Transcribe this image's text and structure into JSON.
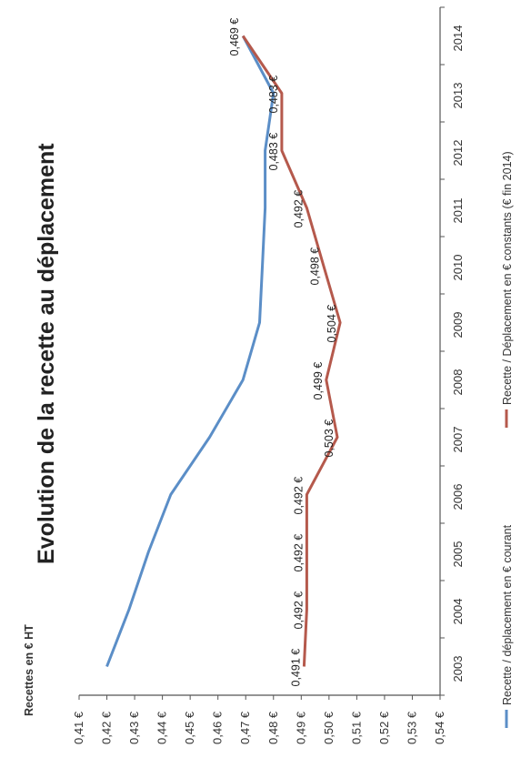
{
  "chart_data": {
    "type": "line",
    "title": "Evolution de la recette au déplacement",
    "ylabel": "Recettes en € HT",
    "xlabel": "",
    "ylim": [
      0.41,
      0.54
    ],
    "yticks": [
      "0,41 €",
      "0,42 €",
      "0,43 €",
      "0,44 €",
      "0,45 €",
      "0,46 €",
      "0,47 €",
      "0,48 €",
      "0,49 €",
      "0,50 €",
      "0,51 €",
      "0,52 €",
      "0,53 €",
      "0,54 €"
    ],
    "categories": [
      "2003",
      "2004",
      "2005",
      "2006",
      "2007",
      "2008",
      "2009",
      "2010",
      "2011",
      "2012",
      "2013",
      "2014"
    ],
    "series": [
      {
        "name": "Recette / déplacement en € courant",
        "color": "#5b8ec7",
        "values": [
          0.42,
          0.428,
          0.435,
          0.443,
          0.457,
          0.469,
          0.475,
          0.476,
          0.477,
          0.477,
          0.48,
          0.469
        ]
      },
      {
        "name": "Recette / Déplacement en € constants (€ fin 2014)",
        "color": "#b5594c",
        "values": [
          0.491,
          0.492,
          0.492,
          0.492,
          0.503,
          0.499,
          0.504,
          0.498,
          0.492,
          0.483,
          0.483,
          0.469
        ],
        "data_labels": [
          "0,491 €",
          "0,492 €",
          "0,492 €",
          "0,492 €",
          "0,503 €",
          "0,499 €",
          "0,504 €",
          "0,498 €",
          "0,492 €",
          "0,483 €",
          "0,483 €",
          "0,469 €"
        ]
      }
    ],
    "grid": false,
    "legend_position": "bottom"
  }
}
